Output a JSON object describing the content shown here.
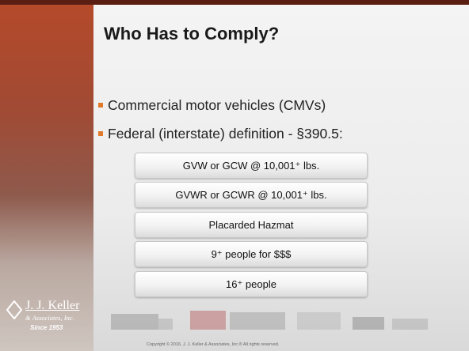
{
  "title": "Who Has to Comply?",
  "bullets": [
    "Commercial motor vehicles (CMVs)",
    "Federal (interstate) definition - §390.5:"
  ],
  "boxes": [
    "GVW or GCW @ 10,001⁺ lbs.",
    "GVWR or GCWR @ 10,001⁺ lbs.",
    "Placarded Hazmat",
    "9⁺ people for $$$",
    "16⁺ people"
  ],
  "logo": {
    "name": "J. J. Keller",
    "subtitle": "& Associates, Inc.",
    "since": "Since 1953"
  },
  "copyright": "Copyright © 2016, J. J. Keller & Associates, Inc.® All rights reserved."
}
